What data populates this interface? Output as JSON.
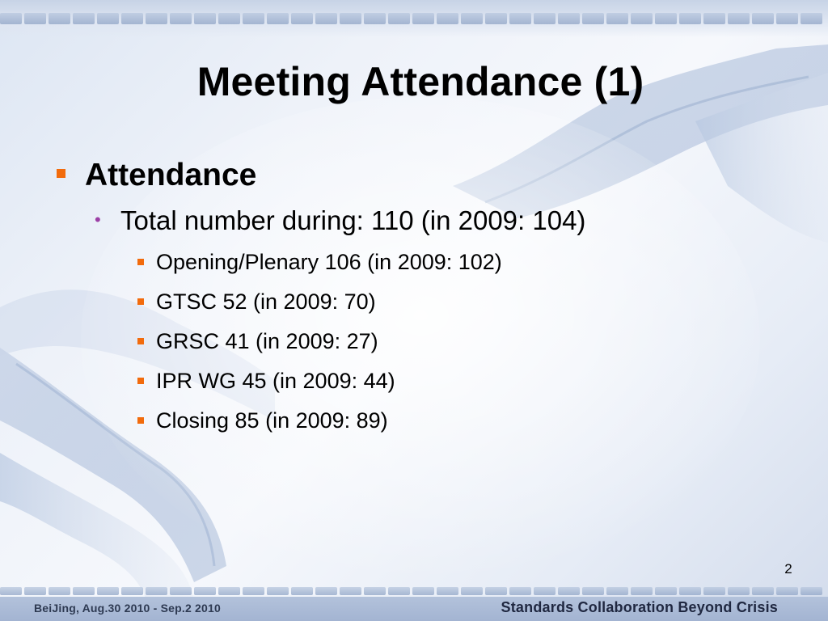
{
  "slide": {
    "title": "Meeting Attendance (1)",
    "page_number": "2",
    "bullet_color": "#f26b0c",
    "dot_color": "#9c3fa6"
  },
  "content": {
    "heading": "Attendance",
    "total": "Total number during: 110 (in 2009: 104)",
    "items": [
      "Opening/Plenary 106 (in 2009: 102)",
      "GTSC 52 (in 2009: 70)",
      "GRSC 41 (in 2009: 27)",
      "IPR WG 45 (in 2009: 44)",
      "Closing 85 (in 2009: 89)"
    ]
  },
  "footer": {
    "left_text": "BeiJing,   Aug.30 2010 - Sep.2  2010",
    "right_text": "Standards Collaboration Beyond Crisis"
  }
}
